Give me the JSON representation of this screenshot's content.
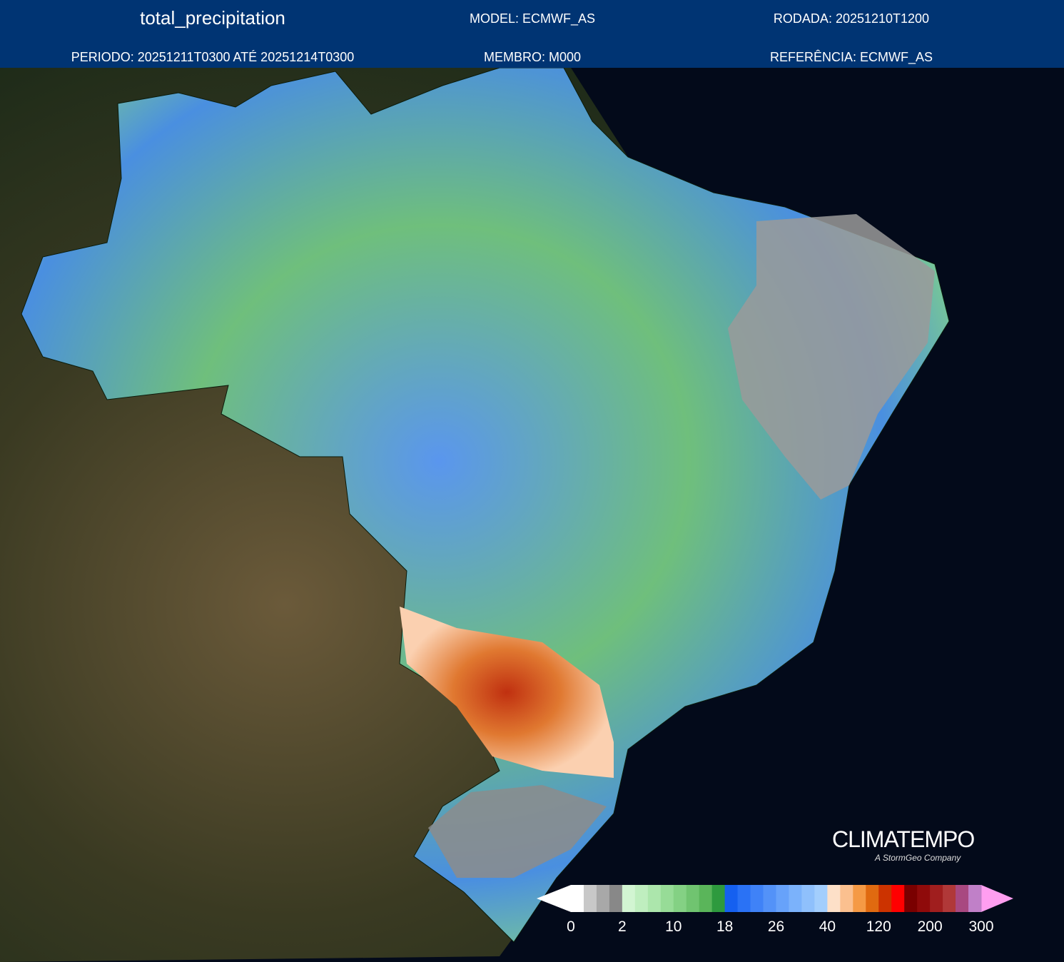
{
  "header": {
    "title": "total_precipitation",
    "model": "MODEL: ECMWF_AS",
    "rodada": "RODADA: 20251210T1200",
    "periodo": "PERIODO: 20251211T0300 ATÉ 20251214T0300",
    "membro": "MEMBRO: M000",
    "referencia": "REFERÊNCIA: ECMWF_AS"
  },
  "logo": {
    "name": "CLIMATEMPO",
    "tagline": "A StormGeo Company"
  },
  "colorbar": {
    "under_color": "#ffffff",
    "over_color": "#ff9ef0",
    "colors": [
      "#ffffff",
      "#c8c8c8",
      "#a8a8a8",
      "#888888",
      "#d2f5d2",
      "#bfeebf",
      "#ace6ac",
      "#97dc97",
      "#84d184",
      "#70c470",
      "#5ab55a",
      "#2e9a3e",
      "#1560f0",
      "#2a72f5",
      "#3f82f7",
      "#5392f8",
      "#67a2fa",
      "#7bb2fb",
      "#8fc0fc",
      "#a3cefd",
      "#fde0c8",
      "#fbc08f",
      "#f59a45",
      "#e06a10",
      "#cc3300",
      "#ff0000",
      "#7a0000",
      "#8f0a0a",
      "#a01e1e",
      "#b03838",
      "#a84880",
      "#c080c8"
    ],
    "ticks": [
      0,
      2,
      10,
      18,
      26,
      40,
      120,
      200,
      300
    ]
  }
}
